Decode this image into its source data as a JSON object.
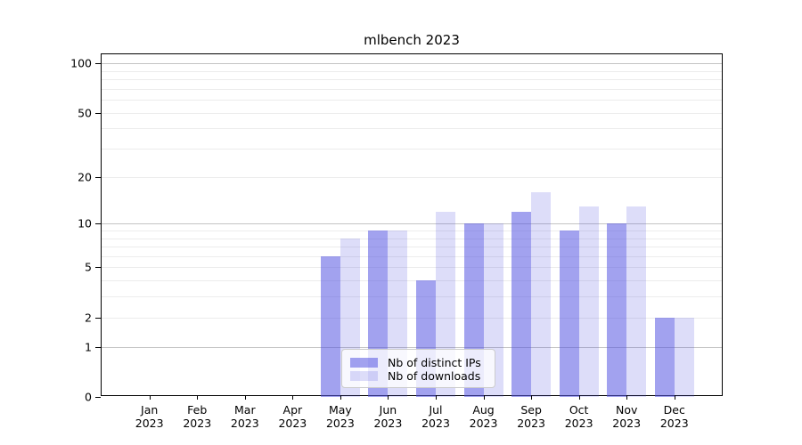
{
  "chart_data": {
    "type": "bar",
    "title": "mlbench 2023",
    "categories": [
      "Jan",
      "Feb",
      "Mar",
      "Apr",
      "May",
      "Jun",
      "Jul",
      "Aug",
      "Sep",
      "Oct",
      "Nov",
      "Dec"
    ],
    "category_year": "2023",
    "series": [
      {
        "name": "Nb of distinct IPs",
        "color": "rgba(85,85,225,0.55)",
        "values": [
          0,
          0,
          0,
          0,
          6,
          9,
          4,
          10,
          12,
          9,
          10,
          2
        ]
      },
      {
        "name": "Nb of downloads",
        "color": "rgba(85,85,225,0.20)",
        "values": [
          0,
          0,
          0,
          0,
          8,
          9,
          12,
          10,
          16,
          13,
          13,
          2
        ]
      }
    ],
    "y_axis": {
      "scale": "log1p",
      "tick_values": [
        0,
        1,
        2,
        5,
        10,
        20,
        50,
        100
      ],
      "major_gridlines": [
        1,
        10,
        100
      ],
      "minor_gridlines": [
        2,
        3,
        4,
        5,
        6,
        7,
        8,
        9,
        20,
        30,
        40,
        50,
        60,
        70,
        80,
        90
      ],
      "top_value": 113
    },
    "legend": {
      "entries": [
        "Nb of distinct IPs",
        "Nb of downloads"
      ],
      "position": "lower center"
    },
    "colors": {
      "bar_dark": "rgba(85,85,225,0.55)",
      "bar_light": "rgba(85,85,225,0.20)",
      "major_grid": "#c4c4c4",
      "minor_grid": "#ececec",
      "spine": "#000000",
      "text": "#000000",
      "background": "#ffffff"
    }
  }
}
